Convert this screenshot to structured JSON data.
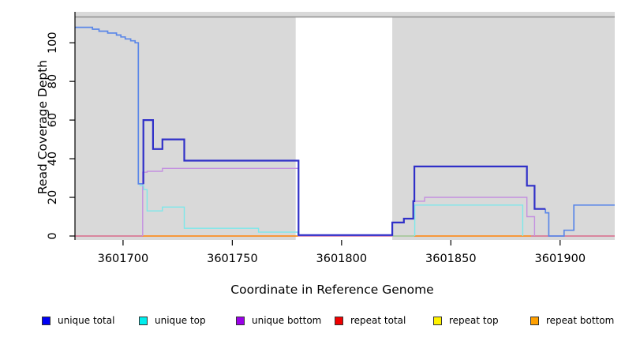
{
  "chart_data": {
    "type": "line",
    "title": "",
    "xlabel": "Coordinate in Reference Genome",
    "ylabel": "Read Coverage Depth",
    "xlim": [
      3601678,
      3601925
    ],
    "ylim": [
      0,
      116
    ],
    "x_ticks": [
      3601700,
      3601750,
      3601800,
      3601850,
      3601900
    ],
    "y_ticks": [
      0,
      20,
      40,
      60,
      80,
      100
    ],
    "plot_background": "#d9d9d9",
    "gap_region": {
      "x0": 3601779,
      "x1": 3601823.2,
      "color": "#ffffff",
      "top_line_color": "#909090"
    },
    "grid": false,
    "legend_position": "bottom",
    "legend": [
      {
        "label": "unique total",
        "color": "#0000f5"
      },
      {
        "label": "unique top",
        "color": "#00eded"
      },
      {
        "label": "unique bottom",
        "color": "#9b00e8"
      },
      {
        "label": "repeat total",
        "color": "#f00000"
      },
      {
        "label": "repeat top",
        "color": "#fff200"
      },
      {
        "label": "repeat bottom",
        "color": "#ffa000"
      }
    ],
    "series": [
      {
        "name": "repeat-total",
        "color": "#d96a8a",
        "width": 1.4,
        "points": [
          [
            3601678,
            0
          ],
          [
            3601925,
            0
          ]
        ]
      },
      {
        "name": "repeat-top",
        "color": "#9fd89f",
        "width": 1.4,
        "points": [
          [
            3601823.2,
            0
          ],
          [
            3601833.3,
            0
          ]
        ]
      },
      {
        "name": "repeat-bottom-left",
        "color": "#ff9514",
        "width": 1.6,
        "points": [
          [
            3601709,
            0
          ],
          [
            3601780,
            0
          ]
        ]
      },
      {
        "name": "repeat-bottom-right",
        "color": "#ff9514",
        "width": 1.6,
        "points": [
          [
            3601833.3,
            0
          ],
          [
            3601886.6,
            0
          ]
        ]
      },
      {
        "name": "unique-bottom",
        "color": "#c490e0",
        "width": 1.4,
        "points": [
          [
            3601709,
            0
          ],
          [
            3601709,
            33
          ],
          [
            3601711,
            33
          ],
          [
            3601711,
            33.5
          ],
          [
            3601718,
            33.5
          ],
          [
            3601718,
            35
          ],
          [
            3601780.3,
            35
          ],
          [
            3601780.3,
            0.2
          ],
          [
            3601823.2,
            0.2
          ],
          [
            3601823.2,
            7
          ],
          [
            3601828.5,
            7
          ],
          [
            3601828.5,
            9
          ],
          [
            3601832.8,
            9
          ],
          [
            3601832.8,
            18
          ],
          [
            3601838,
            18
          ],
          [
            3601838,
            20
          ],
          [
            3601884.8,
            20
          ],
          [
            3601884.8,
            10
          ],
          [
            3601888.3,
            10
          ],
          [
            3601888.3,
            0
          ]
        ]
      },
      {
        "name": "unique-top-left",
        "color": "#7ce8ea",
        "width": 1.4,
        "points": [
          [
            3601707.5,
            26
          ],
          [
            3601709.5,
            26
          ],
          [
            3601709.5,
            24
          ],
          [
            3601711,
            24
          ],
          [
            3601711,
            13
          ],
          [
            3601718,
            13
          ],
          [
            3601718,
            15
          ],
          [
            3601728,
            15
          ],
          [
            3601728,
            4
          ],
          [
            3601762,
            4
          ],
          [
            3601762,
            2
          ],
          [
            3601780,
            2
          ],
          [
            3601780,
            0
          ]
        ]
      },
      {
        "name": "unique-top-right",
        "color": "#7ce8ea",
        "width": 1.4,
        "points": [
          [
            3601833.5,
            0
          ],
          [
            3601833.5,
            16
          ],
          [
            3601882.9,
            16
          ],
          [
            3601882.9,
            0
          ]
        ]
      },
      {
        "name": "total-coverage",
        "color": "#5b87e8",
        "width": 1.7,
        "points": [
          [
            3601678,
            108
          ],
          [
            3601686,
            108
          ],
          [
            3601686,
            107
          ],
          [
            3601689,
            107
          ],
          [
            3601689,
            106
          ],
          [
            3601693,
            106
          ],
          [
            3601693,
            105
          ],
          [
            3601697,
            105
          ],
          [
            3601697,
            104
          ],
          [
            3601699,
            104
          ],
          [
            3601699,
            103
          ],
          [
            3601701,
            103
          ],
          [
            3601701,
            102
          ],
          [
            3601703.5,
            102
          ],
          [
            3601703.5,
            101
          ],
          [
            3601705.5,
            101
          ],
          [
            3601705.5,
            100
          ],
          [
            3601707,
            100
          ],
          [
            3601707,
            27
          ],
          [
            3601709.3,
            27
          ],
          [
            3601709.3,
            60
          ]
        ]
      },
      {
        "name": "total-coverage-tail",
        "color": "#5b87e8",
        "width": 1.7,
        "points": [
          [
            3601893.3,
            14
          ],
          [
            3601893.3,
            12
          ],
          [
            3601894.8,
            12
          ],
          [
            3601894.8,
            0
          ],
          [
            3601901.8,
            0
          ],
          [
            3601901.8,
            3
          ],
          [
            3601906.3,
            3
          ],
          [
            3601906.3,
            16
          ],
          [
            3601925,
            16
          ]
        ]
      },
      {
        "name": "unique-total",
        "color": "#3030c8",
        "width": 2.2,
        "points": [
          [
            3601709.3,
            27
          ],
          [
            3601709.3,
            60
          ],
          [
            3601713.7,
            60
          ],
          [
            3601713.7,
            45
          ],
          [
            3601718,
            45
          ],
          [
            3601718,
            50
          ],
          [
            3601728,
            50
          ],
          [
            3601728,
            39
          ],
          [
            3601780.3,
            39
          ],
          [
            3601780.3,
            0.5
          ],
          [
            3601823.2,
            0.5
          ],
          [
            3601823.2,
            7
          ],
          [
            3601828.5,
            7
          ],
          [
            3601828.5,
            9
          ],
          [
            3601832.8,
            9
          ],
          [
            3601832.8,
            18
          ],
          [
            3601833.3,
            18
          ],
          [
            3601833.3,
            36
          ],
          [
            3601884.8,
            36
          ],
          [
            3601884.8,
            26
          ],
          [
            3601888.3,
            26
          ],
          [
            3601888.3,
            14
          ],
          [
            3601893.3,
            14
          ]
        ]
      }
    ]
  }
}
